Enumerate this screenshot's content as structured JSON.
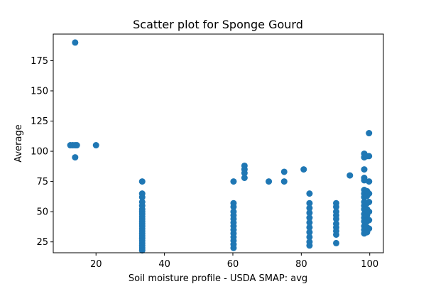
{
  "chart_data": {
    "type": "scatter",
    "title": "Scatter plot for Sponge Gourd",
    "xlabel": "Soil moisture profile - USDA SMAP: avg",
    "ylabel": "Average",
    "xlim": [
      7.5,
      104
    ],
    "ylim": [
      16,
      197
    ],
    "xticks": [
      20,
      40,
      60,
      80,
      100
    ],
    "yticks": [
      25,
      50,
      75,
      100,
      125,
      150,
      175
    ],
    "grid": false,
    "marker_color": "#1f77b4",
    "points": [
      [
        13.9,
        190
      ],
      [
        12.5,
        105
      ],
      [
        13.2,
        105
      ],
      [
        13.9,
        105
      ],
      [
        14.4,
        105
      ],
      [
        13.9,
        95
      ],
      [
        20,
        105
      ],
      [
        33.5,
        75
      ],
      [
        33.5,
        65
      ],
      [
        33.5,
        62
      ],
      [
        33.5,
        58
      ],
      [
        33.5,
        55
      ],
      [
        33.5,
        52
      ],
      [
        33.5,
        50
      ],
      [
        33.5,
        48
      ],
      [
        33.5,
        46
      ],
      [
        33.5,
        44
      ],
      [
        33.5,
        42
      ],
      [
        33.5,
        40
      ],
      [
        33.5,
        38
      ],
      [
        33.5,
        36
      ],
      [
        33.5,
        34
      ],
      [
        33.5,
        32
      ],
      [
        33.5,
        30
      ],
      [
        33.5,
        28
      ],
      [
        33.5,
        26
      ],
      [
        33.5,
        24
      ],
      [
        33.5,
        22
      ],
      [
        33.5,
        20
      ],
      [
        33.5,
        18
      ],
      [
        60.2,
        75
      ],
      [
        60.2,
        57
      ],
      [
        60.2,
        54
      ],
      [
        60.2,
        50
      ],
      [
        60.2,
        47
      ],
      [
        60.2,
        44
      ],
      [
        60.2,
        41
      ],
      [
        60.2,
        38
      ],
      [
        60.2,
        35
      ],
      [
        60.2,
        32
      ],
      [
        60.2,
        29
      ],
      [
        60.2,
        26
      ],
      [
        60.2,
        23
      ],
      [
        60.2,
        20
      ],
      [
        63.4,
        88
      ],
      [
        63.4,
        85
      ],
      [
        63.4,
        82
      ],
      [
        63.4,
        78
      ],
      [
        70.5,
        75
      ],
      [
        75,
        83
      ],
      [
        75,
        75
      ],
      [
        80.7,
        85
      ],
      [
        82.4,
        65
      ],
      [
        82.4,
        57
      ],
      [
        82.4,
        53
      ],
      [
        82.4,
        49
      ],
      [
        82.4,
        45
      ],
      [
        82.4,
        41
      ],
      [
        82.4,
        37
      ],
      [
        82.4,
        33
      ],
      [
        82.4,
        29
      ],
      [
        82.4,
        25
      ],
      [
        82.4,
        22
      ],
      [
        90.2,
        57
      ],
      [
        90.2,
        54
      ],
      [
        90.2,
        50
      ],
      [
        90.2,
        47
      ],
      [
        90.2,
        44
      ],
      [
        90.2,
        40
      ],
      [
        90.2,
        37
      ],
      [
        90.2,
        34
      ],
      [
        90.2,
        31
      ],
      [
        90.2,
        24
      ],
      [
        94.2,
        80
      ],
      [
        98.4,
        98
      ],
      [
        98.4,
        95
      ],
      [
        98.4,
        85
      ],
      [
        98.4,
        78
      ],
      [
        98.4,
        76
      ],
      [
        98.4,
        68
      ],
      [
        98.4,
        65
      ],
      [
        98.4,
        62
      ],
      [
        98.4,
        58
      ],
      [
        98.4,
        55
      ],
      [
        98.4,
        52
      ],
      [
        98.4,
        48
      ],
      [
        98.4,
        45
      ],
      [
        98.4,
        42
      ],
      [
        98.4,
        38
      ],
      [
        98.4,
        35
      ],
      [
        98.4,
        32
      ],
      [
        99.2,
        96
      ],
      [
        99.2,
        67
      ],
      [
        99.2,
        63
      ],
      [
        99.2,
        57
      ],
      [
        99.2,
        52
      ],
      [
        99.2,
        47
      ],
      [
        99.2,
        42
      ],
      [
        99.2,
        37
      ],
      [
        99.2,
        33
      ],
      [
        99.8,
        115
      ],
      [
        99.8,
        96
      ],
      [
        99.8,
        75
      ],
      [
        99.8,
        65
      ],
      [
        99.8,
        58
      ],
      [
        99.8,
        50
      ],
      [
        99.8,
        43
      ],
      [
        99.8,
        36
      ]
    ]
  }
}
